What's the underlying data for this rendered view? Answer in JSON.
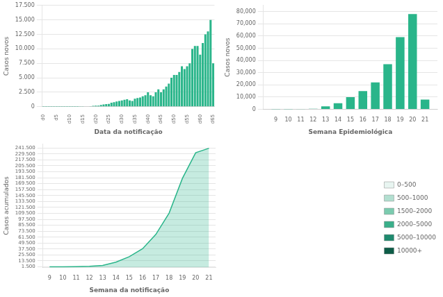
{
  "chart_data": [
    {
      "type": "bar",
      "xlabel": "Data da notificação",
      "ylabel": "Casos novos",
      "categories": [
        "d0",
        null,
        null,
        null,
        null,
        "d5",
        null,
        null,
        null,
        null,
        "d10",
        null,
        null,
        null,
        null,
        "d15",
        null,
        null,
        null,
        null,
        "d20",
        null,
        null,
        null,
        null,
        "d25",
        null,
        null,
        null,
        null,
        "d30",
        null,
        null,
        null,
        null,
        "d35",
        null,
        null,
        null,
        null,
        "d40",
        null,
        null,
        null,
        null,
        "d45",
        null,
        null,
        null,
        null,
        "d50",
        null,
        null,
        null,
        null,
        "d55",
        null,
        null,
        null,
        null,
        "d60",
        null,
        null,
        null,
        null,
        "d65"
      ],
      "values": [
        5,
        3,
        2,
        4,
        6,
        3,
        5,
        8,
        10,
        8,
        12,
        15,
        20,
        25,
        30,
        50,
        70,
        80,
        100,
        150,
        180,
        200,
        300,
        400,
        450,
        500,
        700,
        800,
        900,
        1000,
        1100,
        1200,
        1300,
        1100,
        1000,
        1400,
        1500,
        1600,
        1800,
        2000,
        2500,
        2000,
        1800,
        2500,
        3000,
        2500,
        3000,
        3500,
        4000,
        5000,
        5500,
        5500,
        6000,
        7000,
        6500,
        7000,
        7500,
        10000,
        10500,
        10500,
        9000,
        11000,
        12500,
        13000,
        15000,
        7500
      ],
      "color": "#2ab58a",
      "ylim": [
        0,
        17500
      ],
      "yticks": [
        0,
        {
          "value": 2500,
          "label": "2.500"
        },
        {
          "value": 5000,
          "label": "5.000"
        },
        {
          "value": 7500,
          "label": "7.500"
        },
        {
          "value": 10000,
          "label": "10.000"
        },
        {
          "value": 12500,
          "label": "12.500"
        },
        {
          "value": 15000,
          "label": "15.000"
        },
        {
          "value": 17500,
          "label": "17.500"
        }
      ],
      "grid": true
    },
    {
      "type": "bar",
      "xlabel": "Semana Epidemiológica",
      "ylabel": "Casos novos",
      "x": [
        9,
        10,
        11,
        12,
        13,
        14,
        15,
        16,
        17,
        18,
        19,
        20,
        21
      ],
      "values": [
        25,
        100,
        200,
        500,
        2500,
        5000,
        10000,
        15000,
        22000,
        37000,
        59000,
        78000,
        8000
      ],
      "color": "#2ab58a",
      "xlim": [
        8,
        22
      ],
      "xticks": [
        9,
        10,
        11,
        12,
        13,
        14,
        15,
        16,
        17,
        18,
        19,
        20,
        21
      ],
      "ylim": [
        0,
        85000
      ],
      "yticks": [
        0,
        {
          "value": 10000,
          "label": "10,000"
        },
        {
          "value": 20000,
          "label": "20,000"
        },
        {
          "value": 30000,
          "label": "30,000"
        },
        {
          "value": 40000,
          "label": "40,000"
        },
        {
          "value": 50000,
          "label": "50,000"
        },
        {
          "value": 60000,
          "label": "60,000"
        },
        {
          "value": 70000,
          "label": "70,000"
        },
        {
          "value": 80000,
          "label": "80,000"
        }
      ],
      "grid": true
    },
    {
      "type": "area",
      "xlabel": "Semana da notificação",
      "ylabel": "Casos acumulados",
      "x": [
        9,
        10,
        11,
        12,
        13,
        14,
        15,
        16,
        17,
        18,
        19,
        20,
        21
      ],
      "values": [
        1500,
        1700,
        2000,
        2500,
        4500,
        11000,
        22000,
        38000,
        67000,
        110000,
        180000,
        232000,
        241000
      ],
      "color": "#2ab58a",
      "xlim": [
        8.5,
        21.5
      ],
      "xticks": [
        9,
        10,
        11,
        12,
        13,
        14,
        15,
        16,
        17,
        18,
        19,
        20,
        21
      ],
      "ylim": [
        0,
        250000
      ],
      "yticks": [
        {
          "value": 1500,
          "label": "1.500"
        },
        {
          "value": 13500,
          "label": "13.500"
        },
        {
          "value": 25500,
          "label": "25.500"
        },
        {
          "value": 37500,
          "label": "37.500"
        },
        {
          "value": 49500,
          "label": "49.500"
        },
        {
          "value": 61500,
          "label": "61.500"
        },
        {
          "value": 73500,
          "label": "73.500"
        },
        {
          "value": 85500,
          "label": "85.500"
        },
        {
          "value": 97500,
          "label": "97.500"
        },
        {
          "value": 109500,
          "label": "109.500"
        },
        {
          "value": 121500,
          "label": "121.500"
        },
        {
          "value": 133500,
          "label": "133.500"
        },
        {
          "value": 145500,
          "label": "145.500"
        },
        {
          "value": 157500,
          "label": "157.500"
        },
        {
          "value": 169500,
          "label": "169.500"
        },
        {
          "value": 181500,
          "label": "181.500"
        },
        {
          "value": 193500,
          "label": "193.500"
        },
        {
          "value": 205500,
          "label": "205.500"
        },
        {
          "value": 217500,
          "label": "217.500"
        },
        {
          "value": 229500,
          "label": "229.500"
        },
        {
          "value": 241500,
          "label": "241.500"
        }
      ],
      "grid": true
    },
    {
      "type": "legend",
      "categories": [
        "0–500",
        "500–1000",
        "1500–2000",
        "2000–5000",
        "5000–10000",
        "10000+"
      ],
      "colors": [
        "#e8f5f1",
        "#b2dfd0",
        "#7bcbaf",
        "#3aaf8a",
        "#1e8a6e",
        "#0d5c47"
      ],
      "legend": "right"
    }
  ]
}
